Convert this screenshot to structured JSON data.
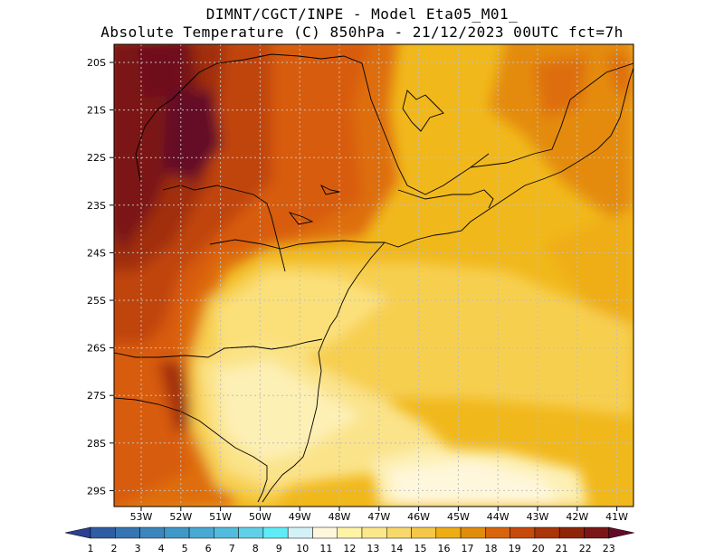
{
  "title": {
    "line1": "DIMNT/CGCT/INPE -  Model Eta05_M01_",
    "line2": "Absolute Temperature (C) 850hPa -  21/12/2023 00UTC fct=7h"
  },
  "axes": {
    "lat_labels": [
      "20S",
      "21S",
      "22S",
      "23S",
      "24S",
      "25S",
      "26S",
      "27S",
      "28S",
      "29S"
    ],
    "lon_labels": [
      "53W",
      "52W",
      "51W",
      "50W",
      "49W",
      "48W",
      "47W",
      "46W",
      "45W",
      "44W",
      "43W",
      "42W",
      "41W"
    ]
  },
  "colorbar": {
    "labels": [
      "1",
      "2",
      "3",
      "4",
      "5",
      "6",
      "7",
      "8",
      "9",
      "10",
      "11",
      "12",
      "13",
      "14",
      "15",
      "16",
      "17",
      "18",
      "19",
      "20",
      "21",
      "22",
      "23"
    ],
    "colors": [
      "#2b3f93",
      "#2f5da3",
      "#3575b2",
      "#3b87bd",
      "#3f98c8",
      "#48a9d2",
      "#52bcdc",
      "#5fd0e6",
      "#5eedf7",
      "#d3f2f8",
      "#fff7dc",
      "#fff3a6",
      "#fce88a",
      "#f8d86a",
      "#f5c746",
      "#efad14",
      "#e18c0c",
      "#d8640c",
      "#c64a0a",
      "#a93508",
      "#8f2508",
      "#7c1717",
      "#650a26"
    ]
  }
}
